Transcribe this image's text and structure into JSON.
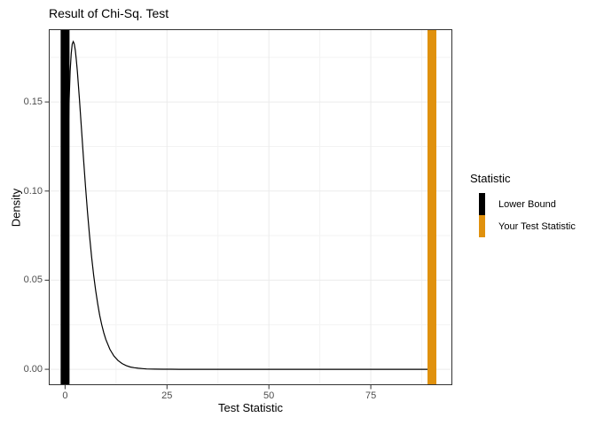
{
  "chart_data": {
    "type": "line",
    "title": "Result of Chi-Sq. Test",
    "xlabel": "Test Statistic",
    "ylabel": "Density",
    "xlim": [
      -4,
      95
    ],
    "ylim": [
      -0.0089,
      0.1908
    ],
    "x_ticks": [
      0,
      25,
      50,
      75
    ],
    "x_tick_labels": [
      "0",
      "25",
      "50",
      "75"
    ],
    "y_ticks": [
      0.0,
      0.05,
      0.1,
      0.15
    ],
    "y_tick_labels": [
      "0.00",
      "0.05",
      "0.10",
      "0.15"
    ],
    "x_minor_ticks": [
      12.5,
      37.5,
      62.5,
      87.5
    ],
    "y_minor_ticks": [
      0.025,
      0.075,
      0.125,
      0.175
    ],
    "grid": "on",
    "distribution": {
      "name": "chi-squared",
      "df": 4,
      "peak_x": 2,
      "peak_density": 0.1839
    },
    "curve_points": [
      [
        0,
        0
      ],
      [
        0.25,
        0.0552
      ],
      [
        0.5,
        0.0973
      ],
      [
        0.75,
        0.1289
      ],
      [
        1,
        0.1516
      ],
      [
        1.25,
        0.1673
      ],
      [
        1.5,
        0.1771
      ],
      [
        1.75,
        0.1824
      ],
      [
        2,
        0.1839
      ],
      [
        2.25,
        0.1826
      ],
      [
        2.5,
        0.1791
      ],
      [
        2.75,
        0.1738
      ],
      [
        3,
        0.1673
      ],
      [
        3.5,
        0.152
      ],
      [
        4,
        0.1353
      ],
      [
        4.5,
        0.1186
      ],
      [
        5,
        0.1026
      ],
      [
        5.5,
        0.0879
      ],
      [
        6,
        0.0747
      ],
      [
        6.5,
        0.063
      ],
      [
        7,
        0.0528
      ],
      [
        7.5,
        0.0441
      ],
      [
        8,
        0.0366
      ],
      [
        8.5,
        0.0303
      ],
      [
        9,
        0.025
      ],
      [
        9.5,
        0.0205
      ],
      [
        10,
        0.0168
      ],
      [
        11,
        0.0112
      ],
      [
        12,
        0.0074
      ],
      [
        13,
        0.0049
      ],
      [
        14,
        0.0032
      ],
      [
        15,
        0.0021
      ],
      [
        16,
        0.0013
      ],
      [
        17,
        0.0009
      ],
      [
        18,
        0.0006
      ],
      [
        19,
        0.0004
      ],
      [
        20,
        0.0002
      ],
      [
        22,
        0.0001
      ],
      [
        24,
        5e-05
      ],
      [
        26,
        2e-05
      ],
      [
        28,
        1e-05
      ],
      [
        30,
        0
      ],
      [
        35,
        0
      ],
      [
        40,
        0
      ],
      [
        50,
        0
      ],
      [
        60,
        0
      ],
      [
        70,
        0
      ],
      [
        80,
        0
      ],
      [
        90,
        0
      ]
    ],
    "vlines": [
      {
        "label": "Lower Bound",
        "x": 0,
        "color": "#000000"
      },
      {
        "label": "Your Test Statistic",
        "x": 90,
        "color": "#E0910D"
      }
    ],
    "legend": {
      "title": "Statistic",
      "position": "right",
      "entries": [
        {
          "label": "Lower Bound",
          "color": "#000000"
        },
        {
          "label": "Your Test Statistic",
          "color": "#E0910D"
        }
      ]
    },
    "colors": {
      "curve": "#000000",
      "grid_major": "#EBEBEB",
      "grid_minor": "#F3F3F3",
      "panel_border": "#333333",
      "tick_mark": "#333333",
      "tick_label": "#4d4d4d",
      "background": "#ffffff"
    }
  }
}
